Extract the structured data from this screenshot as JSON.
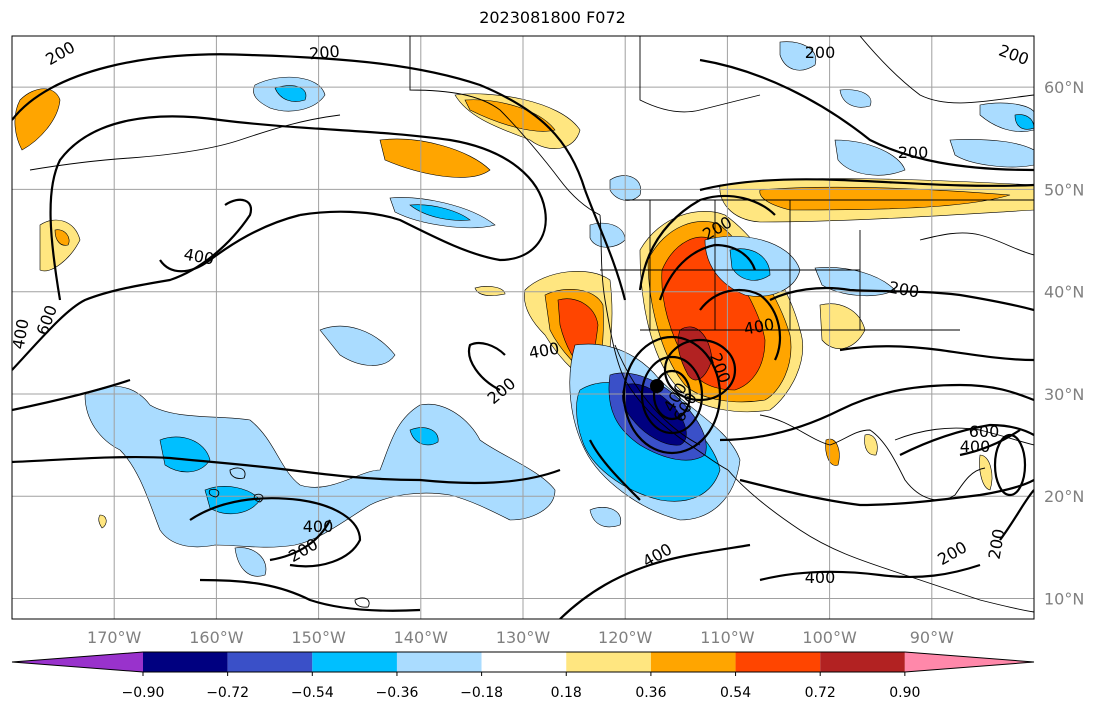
{
  "title": "2023081800 F072",
  "map": {
    "projection": "cylindrical",
    "lon_range": [
      -180,
      -80
    ],
    "lat_range": [
      8,
      65
    ],
    "lon_ticks": [
      "170°W",
      "160°W",
      "150°W",
      "140°W",
      "130°W",
      "120°W",
      "110°W",
      "100°W",
      "90°W"
    ],
    "lat_ticks": [
      "10°N",
      "20°N",
      "30°N",
      "40°N",
      "50°N",
      "60°N"
    ],
    "contour_labels": [
      "200",
      "200",
      "200",
      "200",
      "400",
      "400",
      "600",
      "400",
      "200",
      "200",
      "200",
      "400",
      "200",
      "600",
      "200",
      "400",
      "600",
      "400",
      "200",
      "400",
      "200",
      "400",
      "200",
      "400"
    ],
    "colorbar": {
      "tick_labels": [
        "−0.90",
        "−0.72",
        "−0.54",
        "−0.36",
        "−0.18",
        "0.18",
        "0.36",
        "0.54",
        "0.72",
        "0.90"
      ],
      "colors": [
        "#9932cc",
        "#000080",
        "#3a50c8",
        "#00bfff",
        "#aadcff",
        "#ffffff",
        "#ffe680",
        "#ffa500",
        "#ff4500",
        "#b22222",
        "#ff88aa"
      ]
    },
    "colors": {
      "coast": "#000000",
      "grid": "#a0a0a0",
      "tick_label": "#808080"
    }
  }
}
